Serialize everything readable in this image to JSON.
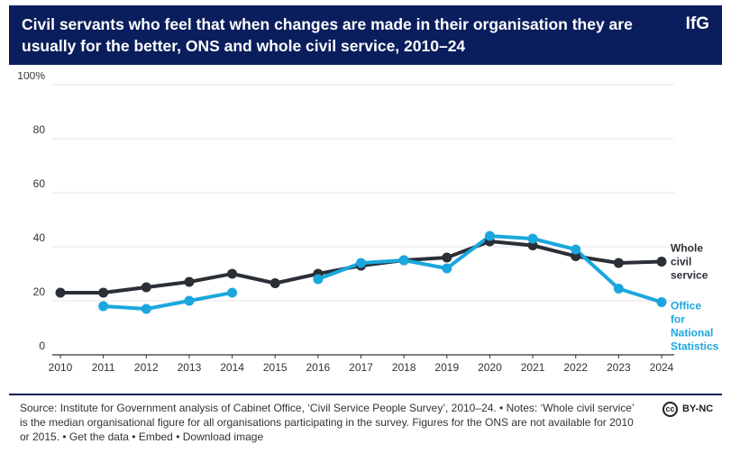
{
  "header": {
    "title": "Civil servants who feel that when changes are made in their organisation they are usually for the better, ONS and whole civil service, 2010–24",
    "logo": "IfG"
  },
  "colors": {
    "header_bg": "#0a1d5c",
    "whole_civil_service": "#2b2f36",
    "ons": "#1aa7de"
  },
  "chart_data": {
    "type": "line",
    "x": [
      2010,
      2011,
      2012,
      2013,
      2014,
      2015,
      2016,
      2017,
      2018,
      2019,
      2020,
      2021,
      2022,
      2023,
      2024
    ],
    "y_ticks": [
      "0",
      "20",
      "40",
      "60",
      "80",
      "100%"
    ],
    "ylim": [
      0,
      100
    ],
    "grid": true,
    "series": [
      {
        "name": "Whole civil service",
        "name_lines": [
          "Whole",
          "civil",
          "service"
        ],
        "color": "#2b2f36",
        "values": [
          23,
          23,
          25,
          27,
          30,
          26.5,
          30,
          33,
          35,
          36,
          42,
          40.5,
          36.5,
          34,
          34.5
        ]
      },
      {
        "name": "Office for National Statistics",
        "name_lines": [
          "Office",
          "for",
          "National",
          "Statistics"
        ],
        "color": "#1aa7de",
        "values": [
          null,
          18,
          17,
          20,
          23,
          null,
          28,
          34,
          35,
          32,
          44,
          43,
          39,
          24.5,
          19.5
        ]
      }
    ]
  },
  "footer": {
    "text": "Source: Institute for Government analysis of Cabinet Office, ‘Civil Service People Survey’, 2010–24. • Notes: ‘Whole civil service’ is the median organisational figure for all organisations participating in the survey. Figures for the ONS are not available for 2010 or 2015. • ",
    "get_data": "Get the data",
    "sep1": " • ",
    "embed": "Embed",
    "sep2": "  • ",
    "download": "Download image"
  },
  "license": {
    "icon": "cc",
    "text": "BY-NC"
  }
}
